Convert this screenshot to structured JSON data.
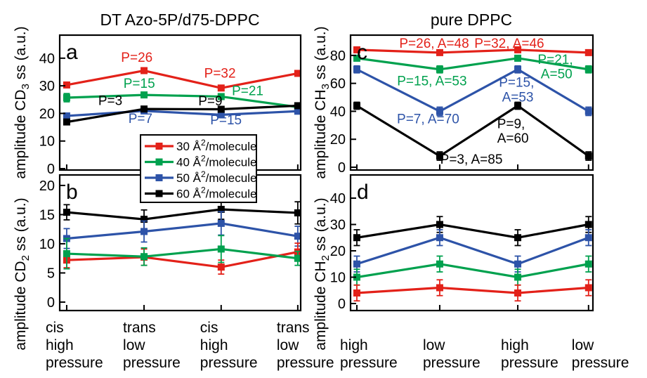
{
  "figure": {
    "left_title": "DT Azo-5P/d75-DPPC",
    "right_title": "pure DPPC"
  },
  "palette": {
    "red": "#e32119",
    "green": "#00a14e",
    "blue": "#2d53a8",
    "black": "#000000"
  },
  "legend": {
    "items": [
      {
        "color": "red",
        "pre": "30 Å",
        "sup": "2",
        "post": "/molecule"
      },
      {
        "color": "green",
        "pre": "40 Å",
        "sup": "2",
        "post": "/molecule"
      },
      {
        "color": "blue",
        "pre": "50 Å",
        "sup": "2",
        "post": "/molecule"
      },
      {
        "color": "black",
        "pre": "60 Å",
        "sup": "2",
        "post": "/molecule"
      }
    ]
  },
  "x_axis": {
    "left_categories": [
      [
        "cis",
        "high",
        "pressure"
      ],
      [
        "trans",
        "low",
        "pressure"
      ],
      [
        "cis",
        "high",
        "pressure"
      ],
      [
        "trans",
        "low",
        "pressure"
      ]
    ],
    "right_categories": [
      [
        "high",
        "pressure"
      ],
      [
        "low",
        "pressure"
      ],
      [
        "high",
        "pressure"
      ],
      [
        "low",
        "pressure"
      ]
    ]
  },
  "chart_data": [
    {
      "id": "a",
      "type": "line",
      "column": "left",
      "row": "top",
      "ylabel": {
        "pre": "amplitude CD",
        "sub": "3",
        "post": " ss (a.u.)"
      },
      "yticks": [
        0,
        10,
        20,
        30,
        40
      ],
      "ylim": [
        -0.5,
        48.35
      ],
      "series": [
        {
          "name": "30 Å²/molecule",
          "color": "red",
          "values": [
            30.3,
            35.5,
            29.2,
            34.5
          ],
          "errors": [
            0.6,
            0.5,
            0.5,
            0.5
          ]
        },
        {
          "name": "40 Å²/molecule",
          "color": "green",
          "values": [
            25.7,
            26.7,
            26.1,
            22.3
          ],
          "errors": [
            1.5,
            0.8,
            0.8,
            0.7
          ]
        },
        {
          "name": "50 Å²/molecule",
          "color": "blue",
          "values": [
            19.1,
            20.9,
            19.5,
            20.8
          ],
          "errors": [
            0.9,
            0.6,
            0.9,
            0.6
          ]
        },
        {
          "name": "60 Å²/molecule",
          "color": "black",
          "values": [
            16.9,
            21.6,
            21.5,
            22.8
          ],
          "errors": [
            0.7,
            0.6,
            0.8,
            0.7
          ]
        }
      ],
      "annotations": [
        {
          "text": "P=26",
          "color": "red",
          "xf": 0.32,
          "y": 38.7,
          "anchor": "middle"
        },
        {
          "text": "P=32",
          "color": "red",
          "xf": 0.665,
          "y": 33.0,
          "anchor": "middle"
        },
        {
          "text": "P=15",
          "color": "green",
          "xf": 0.33,
          "y": 29.3,
          "anchor": "middle"
        },
        {
          "text": "P=21",
          "color": "green",
          "xf": 0.78,
          "y": 26.6,
          "anchor": "middle"
        },
        {
          "text": "P=3",
          "color": "black",
          "xf": 0.21,
          "y": 23.0,
          "anchor": "middle"
        },
        {
          "text": "P=9",
          "color": "black",
          "xf": 0.625,
          "y": 22.9,
          "anchor": "middle"
        },
        {
          "text": "P=7",
          "color": "blue",
          "xf": 0.335,
          "y": 16.6,
          "anchor": "middle"
        },
        {
          "text": "P=15",
          "color": "blue",
          "xf": 0.69,
          "y": 16.0,
          "anchor": "middle"
        }
      ]
    },
    {
      "id": "b",
      "type": "line",
      "column": "left",
      "row": "bottom",
      "ylabel": {
        "pre": "amplitude CD",
        "sub": "2",
        "post": " ss (a.u.)"
      },
      "yticks": [
        0,
        5,
        10,
        15,
        20
      ],
      "ylim": [
        -1.45,
        21.8
      ],
      "series": [
        {
          "name": "60 Å²/molecule",
          "color": "black",
          "values": [
            15.4,
            14.2,
            15.9,
            15.3
          ],
          "errors": [
            1.3,
            1.6,
            1.7,
            1.9
          ]
        },
        {
          "name": "50 Å²/molecule",
          "color": "blue",
          "values": [
            10.9,
            12.1,
            13.5,
            11.3
          ],
          "errors": [
            1.7,
            1.8,
            2.0,
            1.7
          ]
        },
        {
          "name": "30 Å²/molecule",
          "color": "red",
          "values": [
            7.2,
            7.7,
            6.0,
            8.6
          ],
          "errors": [
            1.3,
            1.4,
            1.2,
            1.5
          ]
        },
        {
          "name": "40 Å²/molecule",
          "color": "green",
          "values": [
            8.3,
            7.8,
            9.1,
            7.5
          ],
          "errors": [
            2.6,
            1.5,
            2.3,
            1.2
          ]
        }
      ],
      "annotations": []
    },
    {
      "id": "c",
      "type": "line",
      "column": "right",
      "row": "top",
      "ylabel": {
        "pre": "amplitude CH",
        "sub": "3",
        "post": " ss (a.u.)"
      },
      "yticks": [
        0,
        20,
        40,
        60,
        80
      ],
      "ylim": [
        -2,
        94.5
      ],
      "series": [
        {
          "name": "30 Å²/molecule",
          "color": "red",
          "values": [
            84,
            82,
            84,
            82
          ],
          "errors": [
            1,
            1,
            1,
            1
          ]
        },
        {
          "name": "40 Å²/molecule",
          "color": "green",
          "values": [
            78,
            70,
            78,
            70
          ],
          "errors": [
            2,
            2.5,
            2,
            2.5
          ]
        },
        {
          "name": "50 Å²/molecule",
          "color": "blue",
          "values": [
            70,
            40,
            70,
            40
          ],
          "errors": [
            2.5,
            3,
            2.5,
            3
          ]
        },
        {
          "name": "60 Å²/molecule",
          "color": "black",
          "values": [
            44,
            8,
            44,
            8
          ],
          "errors": [
            2.5,
            3,
            2.5,
            3
          ]
        }
      ],
      "annotations": [
        {
          "text": "P=26, A=48",
          "color": "red",
          "xf": 0.345,
          "y": 85.5,
          "anchor": "middle"
        },
        {
          "text": "P=32, A=46",
          "color": "red",
          "xf": 0.655,
          "y": 85.5,
          "anchor": "middle"
        },
        {
          "text": "P=15, A=53",
          "color": "green",
          "xf": 0.336,
          "y": 58.5,
          "anchor": "middle"
        },
        {
          "text": "P=21,",
          "color": "green",
          "xf": 0.845,
          "y": 74.0,
          "anchor": "middle"
        },
        {
          "text": "A=50",
          "color": "green",
          "xf": 0.85,
          "y": 63.5,
          "anchor": "middle"
        },
        {
          "text": "P=7, A=70",
          "color": "blue",
          "xf": 0.32,
          "y": 31.5,
          "anchor": "middle"
        },
        {
          "text": "P=15,",
          "color": "blue",
          "xf": 0.685,
          "y": 57.5,
          "anchor": "middle"
        },
        {
          "text": "A=53",
          "color": "blue",
          "xf": 0.69,
          "y": 47.0,
          "anchor": "middle"
        },
        {
          "text": "P=3, A=85",
          "color": "black",
          "xf": 0.37,
          "y": 2.5,
          "anchor": "start"
        },
        {
          "text": "P=9,",
          "color": "black",
          "xf": 0.605,
          "y": 28.0,
          "anchor": "start"
        },
        {
          "text": "A=60",
          "color": "black",
          "xf": 0.605,
          "y": 17.5,
          "anchor": "start"
        }
      ]
    },
    {
      "id": "d",
      "type": "line",
      "column": "right",
      "row": "bottom",
      "ylabel": {
        "pre": "amplitude CH",
        "sub": "2",
        "post": " ss (a.u.)"
      },
      "yticks": [
        0,
        10,
        20,
        30,
        40
      ],
      "ylim": [
        -2.67,
        48.8
      ],
      "series": [
        {
          "name": "60 Å²/molecule",
          "color": "black",
          "values": [
            25,
            30,
            25,
            30
          ],
          "errors": [
            3,
            3,
            3,
            3
          ]
        },
        {
          "name": "50 Å²/molecule",
          "color": "blue",
          "values": [
            15,
            25,
            15,
            25
          ],
          "errors": [
            3,
            3,
            3,
            3
          ]
        },
        {
          "name": "40 Å²/molecule",
          "color": "green",
          "values": [
            10,
            15,
            10,
            15
          ],
          "errors": [
            3,
            3,
            3,
            3
          ]
        },
        {
          "name": "30 Å²/molecule",
          "color": "red",
          "values": [
            4,
            6,
            4,
            6
          ],
          "errors": [
            3,
            3,
            3,
            3
          ]
        }
      ],
      "annotations": []
    }
  ]
}
